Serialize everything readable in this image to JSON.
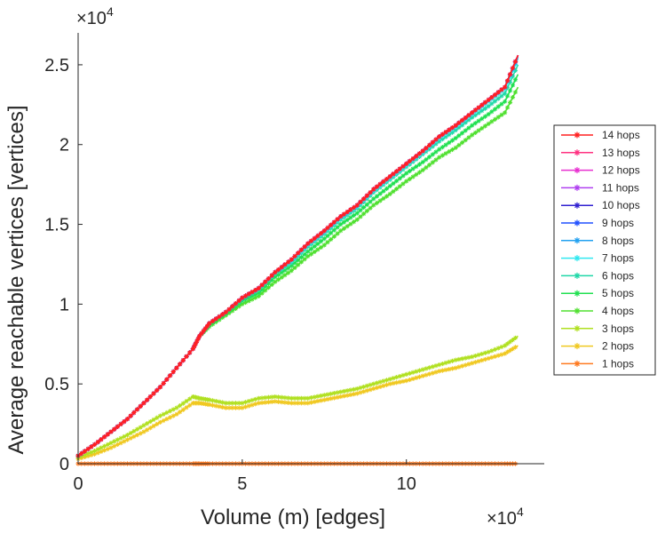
{
  "chart_data": {
    "type": "line",
    "title": "",
    "xlabel": "Volume (m) [edges]",
    "ylabel": "Average reachable vertices [vertices]",
    "x_exponent": "×10",
    "x_exponent_power": "4",
    "y_exponent": "×10",
    "y_exponent_power": "4",
    "xlim": [
      0,
      14.2
    ],
    "ylim": [
      0,
      2.7
    ],
    "xticks": [
      0,
      5,
      10
    ],
    "xtick_labels": [
      "0",
      "5",
      "10"
    ],
    "yticks": [
      0,
      0.5,
      1,
      1.5,
      2,
      2.5
    ],
    "ytick_labels": [
      "0",
      "0.5",
      "1",
      "1.5",
      "2",
      "2.5"
    ],
    "legend_position": "right",
    "x": [
      0,
      0.5,
      1,
      1.5,
      2,
      2.5,
      3,
      3.5,
      3.7,
      4,
      4.5,
      5,
      5.5,
      6,
      6.5,
      7,
      7.5,
      8,
      8.5,
      9,
      9.5,
      10,
      10.5,
      11,
      11.5,
      12,
      12.5,
      13,
      13.4
    ],
    "series": [
      {
        "name": "14 hops",
        "color": "#ff2020",
        "values": [
          0.05,
          0.12,
          0.2,
          0.28,
          0.38,
          0.48,
          0.6,
          0.72,
          0.8,
          0.88,
          0.95,
          1.04,
          1.1,
          1.2,
          1.28,
          1.38,
          1.46,
          1.55,
          1.62,
          1.72,
          1.8,
          1.88,
          1.96,
          2.05,
          2.12,
          2.2,
          2.28,
          2.36,
          2.56
        ]
      },
      {
        "name": "13 hops",
        "color": "#ff3080",
        "values": [
          0.05,
          0.12,
          0.2,
          0.28,
          0.38,
          0.48,
          0.6,
          0.72,
          0.8,
          0.88,
          0.95,
          1.04,
          1.1,
          1.2,
          1.28,
          1.38,
          1.46,
          1.55,
          1.62,
          1.72,
          1.8,
          1.88,
          1.96,
          2.05,
          2.12,
          2.2,
          2.28,
          2.36,
          2.56
        ]
      },
      {
        "name": "12 hops",
        "color": "#e830d0",
        "values": [
          0.05,
          0.12,
          0.2,
          0.28,
          0.38,
          0.48,
          0.6,
          0.72,
          0.8,
          0.88,
          0.95,
          1.04,
          1.1,
          1.2,
          1.28,
          1.38,
          1.46,
          1.55,
          1.62,
          1.72,
          1.8,
          1.88,
          1.96,
          2.05,
          2.12,
          2.2,
          2.28,
          2.36,
          2.56
        ]
      },
      {
        "name": "11 hops",
        "color": "#b040f0",
        "values": [
          0.05,
          0.12,
          0.2,
          0.28,
          0.38,
          0.48,
          0.6,
          0.72,
          0.8,
          0.88,
          0.95,
          1.04,
          1.1,
          1.2,
          1.28,
          1.38,
          1.46,
          1.55,
          1.62,
          1.72,
          1.8,
          1.88,
          1.96,
          2.05,
          2.12,
          2.2,
          2.28,
          2.36,
          2.56
        ]
      },
      {
        "name": "10 hops",
        "color": "#3020d0",
        "values": [
          0.05,
          0.12,
          0.2,
          0.28,
          0.38,
          0.48,
          0.6,
          0.72,
          0.8,
          0.88,
          0.95,
          1.04,
          1.1,
          1.2,
          1.28,
          1.38,
          1.46,
          1.55,
          1.62,
          1.72,
          1.8,
          1.88,
          1.96,
          2.05,
          2.12,
          2.2,
          2.28,
          2.36,
          2.56
        ]
      },
      {
        "name": "9 hops",
        "color": "#2050ff",
        "values": [
          0.05,
          0.12,
          0.2,
          0.28,
          0.38,
          0.48,
          0.6,
          0.72,
          0.8,
          0.88,
          0.95,
          1.04,
          1.1,
          1.2,
          1.28,
          1.38,
          1.46,
          1.55,
          1.62,
          1.72,
          1.8,
          1.88,
          1.96,
          2.05,
          2.12,
          2.2,
          2.28,
          2.36,
          2.56
        ]
      },
      {
        "name": "8 hops",
        "color": "#20a0f0",
        "values": [
          0.05,
          0.12,
          0.2,
          0.28,
          0.38,
          0.48,
          0.6,
          0.72,
          0.8,
          0.88,
          0.95,
          1.04,
          1.1,
          1.2,
          1.28,
          1.38,
          1.46,
          1.55,
          1.62,
          1.72,
          1.8,
          1.88,
          1.96,
          2.05,
          2.12,
          2.2,
          2.28,
          2.36,
          2.55
        ]
      },
      {
        "name": "7 hops",
        "color": "#30e8f0",
        "values": [
          0.05,
          0.12,
          0.2,
          0.28,
          0.38,
          0.48,
          0.6,
          0.72,
          0.8,
          0.88,
          0.95,
          1.04,
          1.1,
          1.2,
          1.27,
          1.37,
          1.45,
          1.54,
          1.61,
          1.71,
          1.79,
          1.87,
          1.95,
          2.04,
          2.11,
          2.19,
          2.27,
          2.35,
          2.54
        ]
      },
      {
        "name": "6 hops",
        "color": "#20d8a8",
        "values": [
          0.05,
          0.12,
          0.2,
          0.28,
          0.38,
          0.48,
          0.6,
          0.72,
          0.8,
          0.88,
          0.95,
          1.03,
          1.09,
          1.19,
          1.26,
          1.36,
          1.44,
          1.53,
          1.6,
          1.7,
          1.78,
          1.86,
          1.94,
          2.02,
          2.09,
          2.17,
          2.24,
          2.32,
          2.5
        ]
      },
      {
        "name": "5 hops",
        "color": "#20e050",
        "values": [
          0.05,
          0.12,
          0.2,
          0.28,
          0.38,
          0.48,
          0.6,
          0.72,
          0.8,
          0.87,
          0.94,
          1.02,
          1.07,
          1.17,
          1.24,
          1.33,
          1.41,
          1.5,
          1.57,
          1.66,
          1.74,
          1.82,
          1.89,
          1.97,
          2.04,
          2.12,
          2.19,
          2.27,
          2.44
        ]
      },
      {
        "name": "4 hops",
        "color": "#50e030",
        "values": [
          0.05,
          0.12,
          0.2,
          0.28,
          0.38,
          0.48,
          0.6,
          0.72,
          0.8,
          0.86,
          0.93,
          1.0,
          1.05,
          1.14,
          1.21,
          1.3,
          1.37,
          1.46,
          1.53,
          1.62,
          1.69,
          1.77,
          1.84,
          1.92,
          1.98,
          2.06,
          2.13,
          2.2,
          2.36
        ]
      },
      {
        "name": "3 hops",
        "color": "#b0e020",
        "values": [
          0.04,
          0.08,
          0.13,
          0.18,
          0.24,
          0.3,
          0.35,
          0.42,
          0.41,
          0.4,
          0.38,
          0.38,
          0.41,
          0.42,
          0.41,
          0.41,
          0.43,
          0.45,
          0.47,
          0.5,
          0.53,
          0.56,
          0.59,
          0.62,
          0.65,
          0.67,
          0.7,
          0.74,
          0.8
        ]
      },
      {
        "name": "2 hops",
        "color": "#f0c820",
        "values": [
          0.03,
          0.06,
          0.1,
          0.15,
          0.2,
          0.26,
          0.31,
          0.38,
          0.38,
          0.37,
          0.35,
          0.35,
          0.38,
          0.39,
          0.38,
          0.38,
          0.4,
          0.42,
          0.44,
          0.47,
          0.5,
          0.52,
          0.55,
          0.58,
          0.6,
          0.63,
          0.66,
          0.69,
          0.74
        ]
      },
      {
        "name": "1 hops",
        "color": "#ff7a20",
        "values": [
          0,
          0,
          0,
          0,
          0,
          0,
          0,
          0,
          0,
          0,
          0,
          0,
          0,
          0,
          0,
          0,
          0,
          0,
          0,
          0,
          0,
          0,
          0,
          0,
          0,
          0,
          0,
          0,
          0
        ]
      }
    ]
  }
}
